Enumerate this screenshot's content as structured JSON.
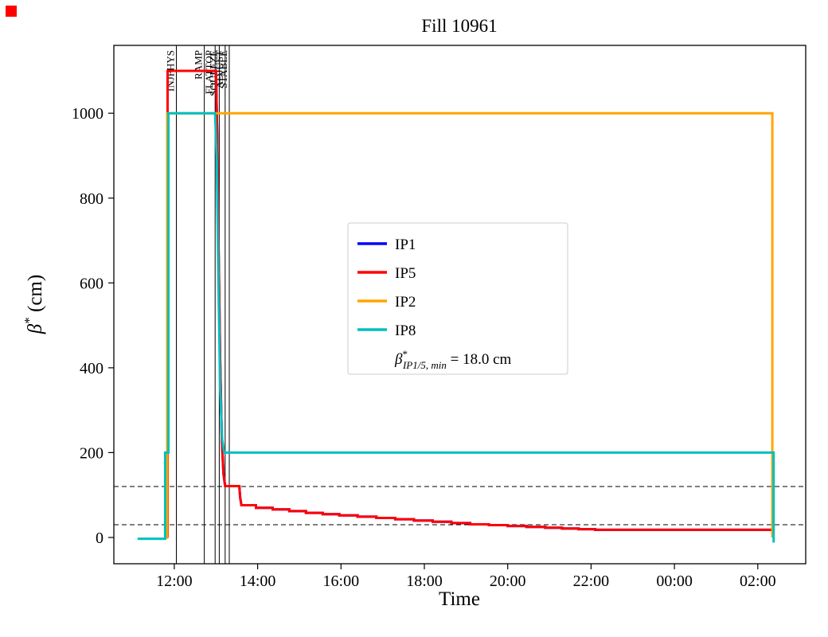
{
  "figure": {
    "corner_marker_color": "#ff0000"
  },
  "chart_data": {
    "type": "line",
    "title": "Fill 10961",
    "xlabel": "Time",
    "ylabel": "β* (cm)",
    "ylabel_parts": {
      "base": "β",
      "sup": "*",
      "rest": " (cm)"
    },
    "xlim": [
      10.55,
      27.15
    ],
    "ylim": [
      -62,
      1160
    ],
    "x_ticks": [
      {
        "v": 12,
        "label": "12:00"
      },
      {
        "v": 14,
        "label": "14:00"
      },
      {
        "v": 16,
        "label": "16:00"
      },
      {
        "v": 18,
        "label": "18:00"
      },
      {
        "v": 20,
        "label": "20:00"
      },
      {
        "v": 22,
        "label": "22:00"
      },
      {
        "v": 24,
        "label": "00:00"
      },
      {
        "v": 26,
        "label": "02:00"
      }
    ],
    "y_ticks": [
      0,
      200,
      400,
      600,
      800,
      1000
    ],
    "reference_lines": [
      {
        "y": 120,
        "color": "#000000",
        "style": "dashed"
      },
      {
        "y": 30,
        "color": "#000000",
        "style": "dashed"
      }
    ],
    "beam_modes": [
      {
        "t": 12.05,
        "label": "INJPHYS"
      },
      {
        "t": 12.72,
        "label": "RAMP"
      },
      {
        "t": 12.98,
        "label": "FLATTOP"
      },
      {
        "t": 13.08,
        "label": "SQUEEZE"
      },
      {
        "t": 13.22,
        "label": "ADJUST"
      },
      {
        "t": 13.32,
        "label": "STABLE"
      }
    ],
    "series": [
      {
        "name": "IP1",
        "color": "#0000ff",
        "points": [
          [
            11.84,
            0
          ],
          [
            11.84,
            1100
          ],
          [
            13.0,
            1100
          ],
          [
            13.03,
            950
          ],
          [
            13.06,
            700
          ],
          [
            13.1,
            420
          ],
          [
            13.14,
            230
          ],
          [
            13.18,
            150
          ],
          [
            13.22,
            121
          ],
          [
            13.56,
            121
          ],
          [
            13.58,
            95
          ],
          [
            13.61,
            76
          ],
          [
            13.96,
            76
          ],
          [
            13.96,
            70
          ],
          [
            14.36,
            70
          ],
          [
            14.36,
            66
          ],
          [
            14.76,
            66
          ],
          [
            14.76,
            62
          ],
          [
            15.16,
            62
          ],
          [
            15.16,
            58
          ],
          [
            15.56,
            58
          ],
          [
            15.56,
            55
          ],
          [
            15.96,
            55
          ],
          [
            15.96,
            52
          ],
          [
            16.4,
            52
          ],
          [
            16.4,
            49
          ],
          [
            16.85,
            49
          ],
          [
            16.85,
            46
          ],
          [
            17.3,
            46
          ],
          [
            17.3,
            43
          ],
          [
            17.75,
            43
          ],
          [
            17.75,
            40
          ],
          [
            18.2,
            40
          ],
          [
            18.2,
            37
          ],
          [
            18.65,
            37
          ],
          [
            18.65,
            34
          ],
          [
            19.1,
            34
          ],
          [
            19.1,
            31
          ],
          [
            19.55,
            31
          ],
          [
            19.55,
            29
          ],
          [
            20.0,
            29
          ],
          [
            20.0,
            27
          ],
          [
            20.45,
            27
          ],
          [
            20.45,
            25
          ],
          [
            20.9,
            25
          ],
          [
            20.9,
            23
          ],
          [
            21.3,
            23
          ],
          [
            21.3,
            21
          ],
          [
            21.7,
            21
          ],
          [
            21.7,
            19.5
          ],
          [
            22.1,
            19.5
          ],
          [
            22.1,
            18
          ],
          [
            26.33,
            18
          ]
        ]
      },
      {
        "name": "IP5",
        "color": "#ff0000",
        "points": [
          [
            11.84,
            0
          ],
          [
            11.84,
            1100
          ],
          [
            13.0,
            1100
          ],
          [
            13.03,
            950
          ],
          [
            13.06,
            700
          ],
          [
            13.1,
            420
          ],
          [
            13.14,
            230
          ],
          [
            13.18,
            150
          ],
          [
            13.22,
            121
          ],
          [
            13.56,
            121
          ],
          [
            13.58,
            95
          ],
          [
            13.61,
            76
          ],
          [
            13.96,
            76
          ],
          [
            13.96,
            70
          ],
          [
            14.36,
            70
          ],
          [
            14.36,
            66
          ],
          [
            14.76,
            66
          ],
          [
            14.76,
            62
          ],
          [
            15.16,
            62
          ],
          [
            15.16,
            58
          ],
          [
            15.56,
            58
          ],
          [
            15.56,
            55
          ],
          [
            15.96,
            55
          ],
          [
            15.96,
            52
          ],
          [
            16.4,
            52
          ],
          [
            16.4,
            49
          ],
          [
            16.85,
            49
          ],
          [
            16.85,
            46
          ],
          [
            17.3,
            46
          ],
          [
            17.3,
            43
          ],
          [
            17.75,
            43
          ],
          [
            17.75,
            40
          ],
          [
            18.2,
            40
          ],
          [
            18.2,
            37
          ],
          [
            18.65,
            37
          ],
          [
            18.65,
            34
          ],
          [
            19.1,
            34
          ],
          [
            19.1,
            31
          ],
          [
            19.55,
            31
          ],
          [
            19.55,
            29
          ],
          [
            20.0,
            29
          ],
          [
            20.0,
            27
          ],
          [
            20.45,
            27
          ],
          [
            20.45,
            25
          ],
          [
            20.9,
            25
          ],
          [
            20.9,
            23
          ],
          [
            21.3,
            23
          ],
          [
            21.3,
            21
          ],
          [
            21.7,
            21
          ],
          [
            21.7,
            19.5
          ],
          [
            22.1,
            19.5
          ],
          [
            22.1,
            18
          ],
          [
            26.33,
            18
          ]
        ]
      },
      {
        "name": "IP2",
        "color": "#ffa500",
        "points": [
          [
            11.83,
            -3
          ],
          [
            11.83,
            1000
          ],
          [
            26.35,
            1000
          ],
          [
            26.35,
            0
          ]
        ]
      },
      {
        "name": "IP8",
        "color": "#00bfbf",
        "points": [
          [
            11.12,
            -3
          ],
          [
            11.78,
            -3
          ],
          [
            11.78,
            200
          ],
          [
            11.86,
            200
          ],
          [
            11.86,
            1000
          ],
          [
            12.98,
            1000
          ],
          [
            13.02,
            880
          ],
          [
            13.06,
            600
          ],
          [
            13.1,
            350
          ],
          [
            13.15,
            230
          ],
          [
            13.2,
            200
          ],
          [
            26.38,
            200
          ],
          [
            26.38,
            -12
          ]
        ]
      }
    ],
    "legend": {
      "entries": [
        {
          "label": "IP1",
          "color": "#0000ff"
        },
        {
          "label": "IP5",
          "color": "#ff0000"
        },
        {
          "label": "IP2",
          "color": "#ffa500"
        },
        {
          "label": "IP8",
          "color": "#00bfbf"
        }
      ],
      "annotation": "β*IP1/5, min = 18.0 cm",
      "annotation_parts": {
        "base": "β",
        "sup": "*",
        "sub": "IP1/5, min",
        "rhs": " = 18.0 cm"
      }
    }
  }
}
